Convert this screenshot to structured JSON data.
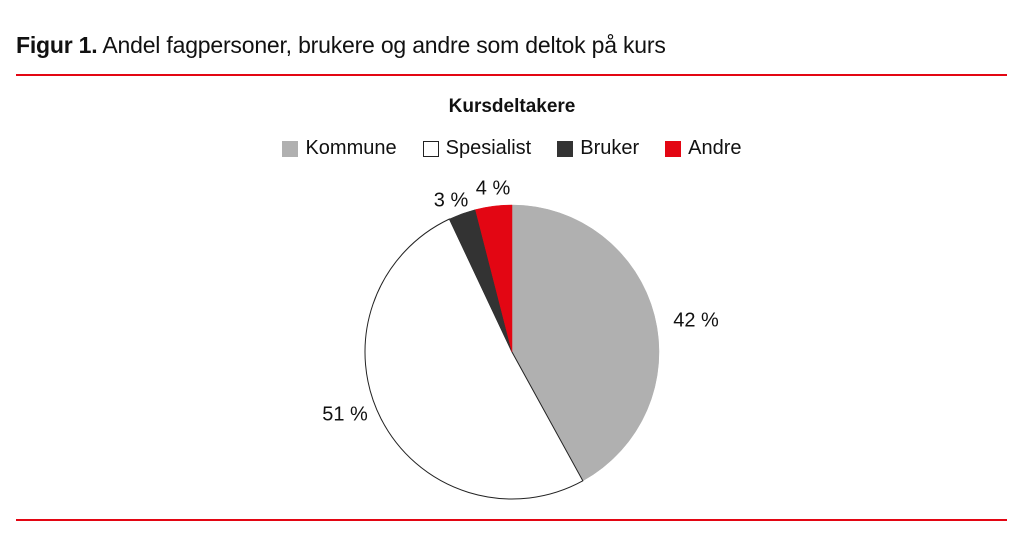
{
  "figure": {
    "lead": "Figur 1.",
    "title": "Andel fagpersoner, brukere og andre som deltok på kurs",
    "rule_color": "#e30613"
  },
  "chart_data": {
    "type": "pie",
    "title": "Kursdeltakere",
    "legend_position": "top",
    "categories": [
      "Kommune",
      "Spesialist",
      "Bruker",
      "Andre"
    ],
    "values": [
      42,
      51,
      3,
      4
    ],
    "labels": [
      "42 %",
      "51 %",
      "3 %",
      "4 %"
    ],
    "colors": [
      "#b0b0b0",
      "#ffffff",
      "#333333",
      "#e30613"
    ],
    "unit": "%",
    "start_angle_deg": 0,
    "direction": "clockwise"
  },
  "legend": [
    {
      "label": "Kommune",
      "color": "#b0b0b0"
    },
    {
      "label": "Spesialist",
      "color": "#ffffff"
    },
    {
      "label": "Bruker",
      "color": "#333333"
    },
    {
      "label": "Andre",
      "color": "#e30613"
    }
  ]
}
